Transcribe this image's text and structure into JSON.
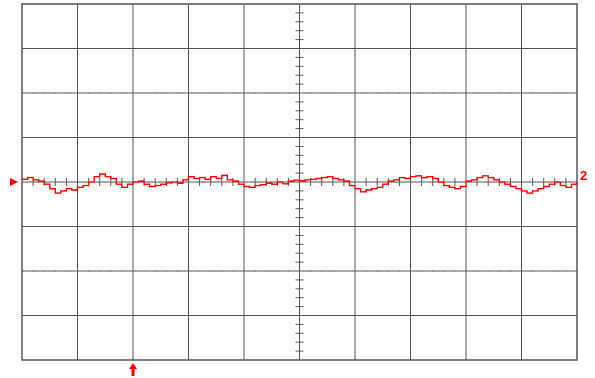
{
  "chart_data": {
    "type": "line",
    "grid": true,
    "divisions": {
      "horizontal": 10,
      "vertical": 8,
      "minor_ticks_per_division": 5
    },
    "series": [
      {
        "color": "#ff0000",
        "x": [
          0,
          0.1,
          0.2,
          0.3,
          0.4,
          0.5,
          0.6,
          0.7,
          0.8,
          0.9,
          1.0,
          1.1,
          1.2,
          1.3,
          1.4,
          1.5,
          1.6,
          1.7,
          1.8,
          1.9,
          2.0,
          2.1,
          2.2,
          2.3,
          2.4,
          2.5,
          2.6,
          2.7,
          2.8,
          2.9,
          3.0,
          3.1,
          3.2,
          3.3,
          3.4,
          3.5,
          3.6,
          3.7,
          3.8,
          3.9,
          4.0,
          4.1,
          4.2,
          4.3,
          4.4,
          4.5,
          4.6,
          4.7,
          4.8,
          4.9,
          5.0,
          5.1,
          5.2,
          5.3,
          5.4,
          5.5,
          5.6,
          5.7,
          5.8,
          5.9,
          6.0,
          6.1,
          6.2,
          6.3,
          6.4,
          6.5,
          6.6,
          6.7,
          6.8,
          6.9,
          7.0,
          7.1,
          7.2,
          7.3,
          7.4,
          7.5,
          7.6,
          7.7,
          7.8,
          7.9,
          8.0,
          8.1,
          8.2,
          8.3,
          8.4,
          8.5,
          8.6,
          8.7,
          8.8,
          8.9,
          9.0,
          9.1,
          9.2,
          9.3,
          9.4,
          9.5,
          9.6,
          9.7,
          9.8,
          9.9,
          10.0
        ],
        "y": [
          0.06,
          0.1,
          0.05,
          0.02,
          -0.05,
          -0.15,
          -0.25,
          -0.2,
          -0.15,
          -0.18,
          -0.12,
          -0.08,
          0.0,
          0.12,
          0.18,
          0.12,
          0.08,
          -0.05,
          -0.12,
          -0.05,
          0.0,
          0.02,
          -0.05,
          -0.1,
          -0.08,
          -0.05,
          -0.02,
          0.0,
          -0.03,
          0.05,
          0.12,
          0.08,
          0.1,
          0.06,
          0.12,
          0.08,
          0.15,
          0.05,
          0.02,
          -0.05,
          -0.1,
          -0.12,
          -0.08,
          -0.06,
          -0.03,
          -0.05,
          0.0,
          -0.04,
          0.02,
          0.04,
          0.03,
          0.05,
          0.06,
          0.08,
          0.1,
          0.12,
          0.08,
          0.05,
          0.02,
          -0.08,
          -0.15,
          -0.22,
          -0.18,
          -0.15,
          -0.12,
          -0.05,
          0.02,
          0.05,
          0.1,
          0.08,
          0.12,
          0.14,
          0.1,
          0.12,
          0.08,
          0.0,
          -0.08,
          -0.12,
          -0.15,
          -0.1,
          0.02,
          0.05,
          0.1,
          0.14,
          0.1,
          0.05,
          0.0,
          -0.05,
          -0.1,
          -0.15,
          -0.2,
          -0.25,
          -0.2,
          -0.15,
          -0.1,
          -0.05,
          0.0,
          -0.08,
          -0.12,
          -0.05,
          0.02
        ]
      }
    ],
    "xlim": [
      0,
      10
    ],
    "ylim": [
      -4,
      4
    ],
    "markers": {
      "ground_level": 0,
      "channel_label": "2",
      "trigger_position": 2
    }
  }
}
